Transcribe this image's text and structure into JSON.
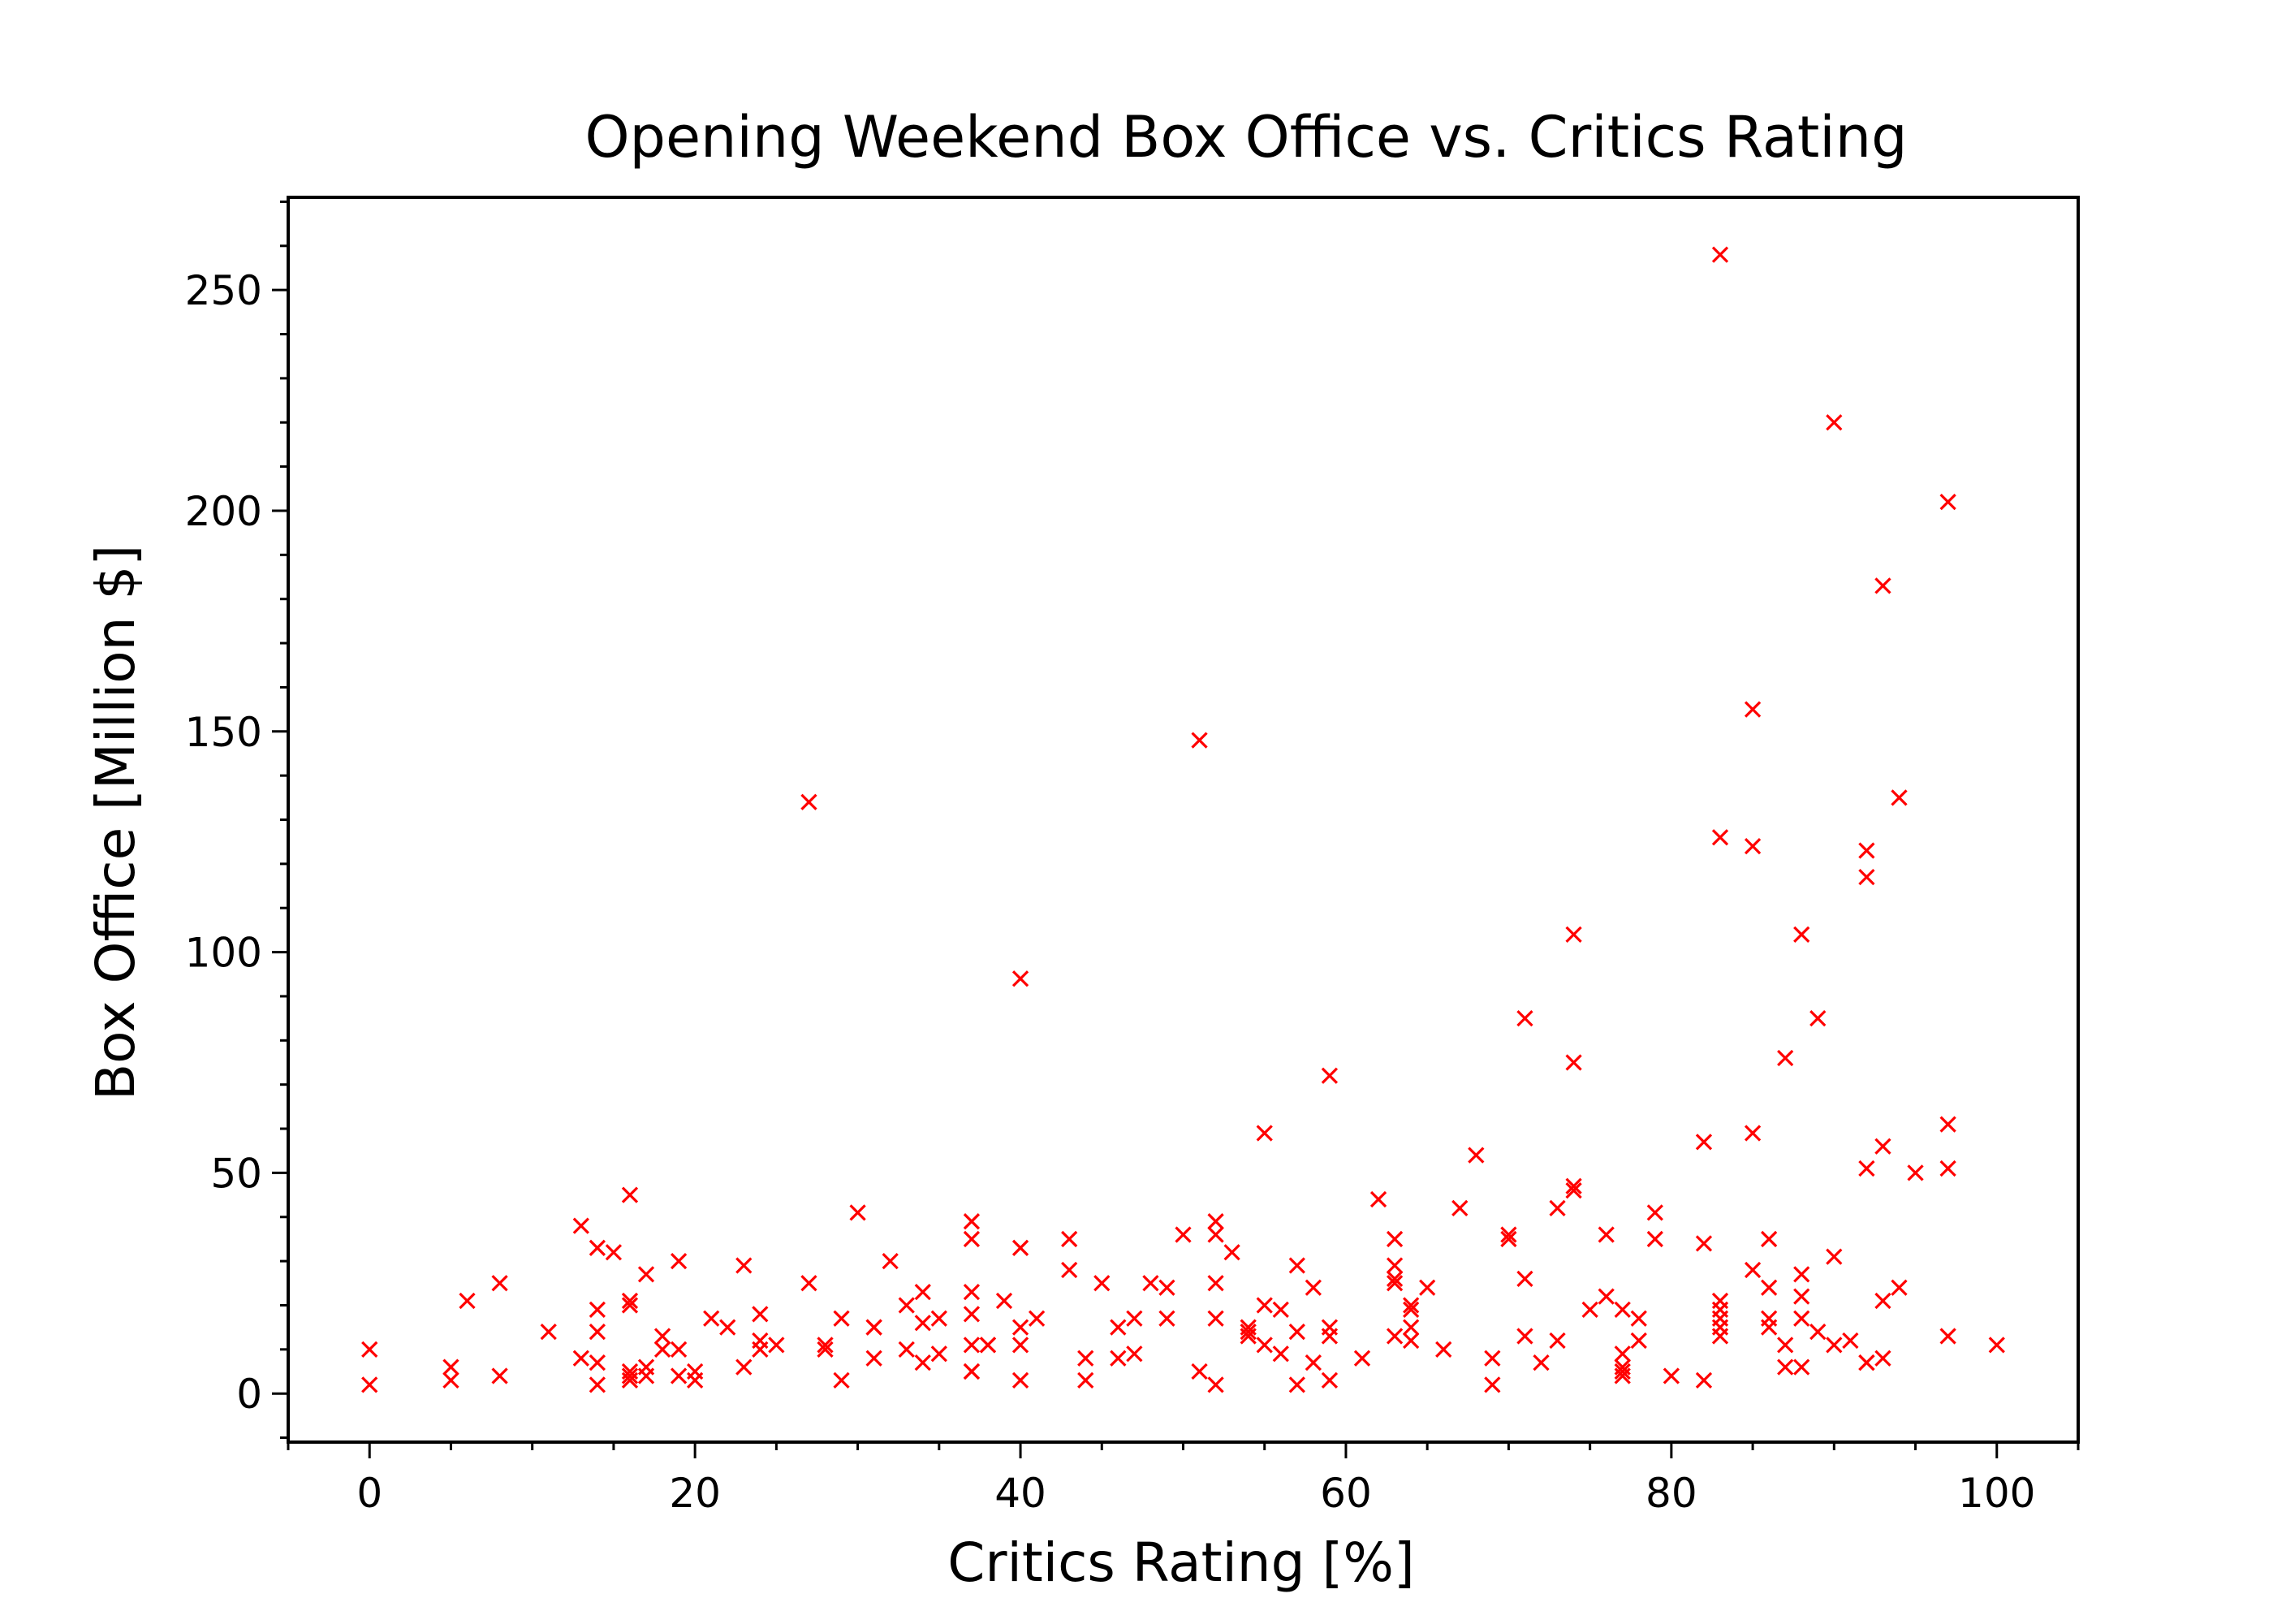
{
  "chart_data": {
    "type": "scatter",
    "title": "Opening Weekend Box Office vs. Critics Rating",
    "xlabel": "Critics Rating [%]",
    "ylabel": "Box Office [Million $]",
    "xlim": [
      -5,
      105
    ],
    "ylim": [
      -11,
      271
    ],
    "xticks": [
      0,
      20,
      40,
      60,
      80,
      100
    ],
    "yticks": [
      0,
      50,
      100,
      150,
      200,
      250
    ],
    "xtick_labels": [
      "0",
      "20",
      "40",
      "60",
      "80",
      "100"
    ],
    "ytick_labels": [
      "0",
      "50",
      "100",
      "150",
      "200",
      "250"
    ],
    "marker": "x",
    "color": "#ff0000",
    "grid": false,
    "series": [
      {
        "x": [
          0,
          0,
          5,
          5,
          6,
          8,
          8,
          11,
          13,
          13,
          14,
          14,
          14,
          14,
          14,
          15,
          16,
          16,
          16,
          16,
          16,
          16,
          17,
          17,
          17,
          18,
          18,
          19,
          19,
          19,
          20,
          20,
          21,
          22,
          23,
          23,
          24,
          24,
          24,
          25,
          27,
          27,
          28,
          28,
          29,
          29,
          30,
          31,
          31,
          31,
          32,
          33,
          33,
          34,
          34,
          34,
          35,
          35,
          37,
          37,
          37,
          37,
          37,
          37,
          37,
          38,
          38,
          39,
          40,
          40,
          40,
          40,
          40,
          41,
          43,
          43,
          44,
          44,
          45,
          46,
          46,
          47,
          47,
          48,
          49,
          49,
          50,
          51,
          51,
          52,
          52,
          52,
          52,
          52,
          53,
          54,
          54,
          54,
          55,
          55,
          55,
          56,
          56,
          57,
          57,
          57,
          58,
          58,
          59,
          59,
          59,
          59,
          61,
          62,
          63,
          63,
          63,
          63,
          63,
          64,
          64,
          64,
          64,
          65,
          66,
          67,
          68,
          69,
          69,
          70,
          70,
          71,
          71,
          71,
          72,
          73,
          73,
          74,
          74,
          74,
          74,
          75,
          76,
          76,
          77,
          77,
          77,
          77,
          77,
          78,
          78,
          79,
          79,
          80,
          82,
          82,
          82,
          83,
          83,
          83,
          83,
          83,
          83,
          83,
          85,
          85,
          85,
          85,
          86,
          86,
          86,
          86,
          87,
          87,
          87,
          88,
          88,
          88,
          88,
          88,
          89,
          89,
          90,
          90,
          90,
          91,
          92,
          92,
          92,
          92,
          92,
          93,
          93,
          93,
          93,
          94,
          94,
          95,
          97,
          97,
          97,
          97,
          100
        ],
        "y": [
          10,
          2,
          6,
          3,
          21,
          25,
          4,
          14,
          38,
          8,
          33,
          19,
          14,
          7,
          2,
          32,
          45,
          21,
          20,
          5,
          4,
          3,
          27,
          6,
          4,
          13,
          10,
          30,
          10,
          4,
          5,
          3,
          17,
          15,
          29,
          6,
          18,
          12,
          10,
          11,
          134,
          25,
          11,
          10,
          17,
          3,
          41,
          15,
          15,
          8,
          30,
          20,
          10,
          23,
          16,
          7,
          17,
          9,
          39,
          35,
          23,
          18,
          11,
          5,
          5,
          11,
          11,
          21,
          94,
          33,
          15,
          11,
          3,
          17,
          35,
          28,
          8,
          3,
          25,
          15,
          8,
          17,
          9,
          25,
          24,
          17,
          36,
          148,
          5,
          39,
          36,
          25,
          17,
          2,
          32,
          15,
          14,
          13,
          59,
          20,
          11,
          19,
          9,
          29,
          14,
          2,
          24,
          7,
          72,
          15,
          13,
          3,
          8,
          44,
          35,
          29,
          26,
          25,
          13,
          20,
          19,
          15,
          12,
          24,
          10,
          42,
          54,
          8,
          2,
          36,
          35,
          85,
          26,
          13,
          7,
          42,
          12,
          104,
          75,
          47,
          46,
          19,
          36,
          22,
          19,
          9,
          6,
          5,
          4,
          17,
          12,
          41,
          35,
          4,
          57,
          34,
          3,
          258,
          126,
          21,
          19,
          17,
          15,
          13,
          155,
          124,
          59,
          28,
          35,
          24,
          17,
          15,
          76,
          11,
          6,
          104,
          27,
          22,
          17,
          6,
          85,
          14,
          220,
          31,
          11,
          12,
          123,
          117,
          51,
          7,
          7,
          183,
          56,
          21,
          8,
          135,
          24,
          50,
          202,
          61,
          51,
          13,
          11
        ]
      }
    ]
  }
}
